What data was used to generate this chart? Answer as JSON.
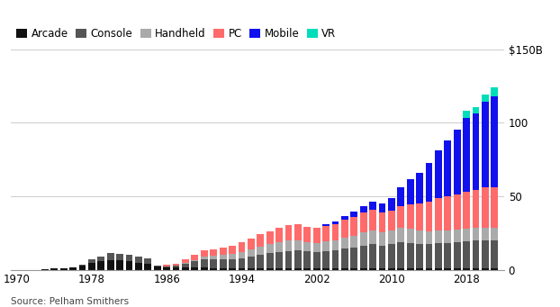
{
  "years": [
    1970,
    1971,
    1972,
    1973,
    1974,
    1975,
    1976,
    1977,
    1978,
    1979,
    1980,
    1981,
    1982,
    1983,
    1984,
    1985,
    1986,
    1987,
    1988,
    1989,
    1990,
    1991,
    1992,
    1993,
    1994,
    1995,
    1996,
    1997,
    1998,
    1999,
    2000,
    2001,
    2002,
    2003,
    2004,
    2005,
    2006,
    2007,
    2008,
    2009,
    2010,
    2011,
    2012,
    2013,
    2014,
    2015,
    2016,
    2017,
    2018,
    2019,
    2020,
    2021
  ],
  "arcade": [
    0.1,
    0.2,
    0.3,
    0.5,
    1.0,
    1.5,
    2.0,
    3.0,
    5.0,
    6.0,
    7.0,
    6.5,
    6.0,
    5.0,
    4.5,
    2.5,
    2.0,
    2.0,
    2.0,
    2.0,
    2.0,
    1.5,
    1.5,
    1.5,
    1.5,
    1.5,
    1.5,
    1.5,
    1.5,
    1.5,
    1.5,
    1.5,
    1.5,
    1.5,
    1.5,
    1.5,
    1.5,
    1.5,
    1.5,
    1.5,
    1.5,
    1.5,
    1.5,
    1.5,
    1.5,
    1.5,
    1.5,
    1.5,
    1.5,
    1.5,
    1.5,
    1.5
  ],
  "console": [
    0,
    0,
    0,
    0,
    0,
    0,
    0,
    1.0,
    2.5,
    3.5,
    4.5,
    4.5,
    4.5,
    4.0,
    3.5,
    0.5,
    0.5,
    1.0,
    2.5,
    4.0,
    5.5,
    6.0,
    6.0,
    6.0,
    6.5,
    7.5,
    9.0,
    10.0,
    11.0,
    11.5,
    12.0,
    11.5,
    11.0,
    11.5,
    12.0,
    13.0,
    14.0,
    15.0,
    16.0,
    15.0,
    16.0,
    17.5,
    17.0,
    16.5,
    16.5,
    17.0,
    17.0,
    17.5,
    18.0,
    18.5,
    19.0,
    19.0
  ],
  "handheld": [
    0,
    0,
    0,
    0,
    0,
    0,
    0,
    0,
    0,
    0,
    0,
    0,
    0,
    0,
    0,
    0,
    0,
    0,
    0.5,
    1.0,
    2.0,
    2.5,
    3.0,
    3.5,
    4.0,
    5.0,
    5.5,
    6.0,
    6.5,
    7.0,
    6.5,
    6.0,
    6.0,
    6.5,
    7.0,
    7.5,
    8.0,
    9.0,
    9.5,
    9.0,
    9.5,
    9.5,
    9.5,
    9.0,
    8.5,
    8.5,
    8.5,
    8.5,
    8.5,
    8.5,
    8.5,
    8.5
  ],
  "pc": [
    0,
    0,
    0,
    0,
    0,
    0,
    0,
    0,
    0,
    0,
    0,
    0,
    0,
    0,
    0,
    0,
    1.0,
    1.5,
    2.5,
    3.5,
    4.0,
    4.0,
    5.0,
    5.5,
    7.0,
    7.5,
    8.5,
    9.0,
    10.0,
    10.5,
    11.0,
    10.5,
    10.0,
    10.5,
    11.0,
    12.0,
    12.5,
    13.5,
    14.0,
    13.5,
    13.5,
    15.0,
    16.5,
    18.0,
    20.0,
    22.0,
    23.0,
    24.0,
    25.0,
    26.0,
    27.0,
    27.0
  ],
  "mobile": [
    0,
    0,
    0,
    0,
    0,
    0,
    0,
    0,
    0,
    0,
    0,
    0,
    0,
    0,
    0,
    0,
    0,
    0,
    0,
    0,
    0,
    0,
    0,
    0,
    0,
    0,
    0,
    0,
    0,
    0,
    0,
    0,
    0.5,
    1.0,
    1.5,
    2.5,
    3.5,
    4.5,
    5.5,
    6.0,
    8.5,
    13.0,
    17.0,
    21.0,
    26.0,
    32.0,
    38.0,
    44.0,
    50.0,
    52.0,
    58.0,
    62.0
  ],
  "vr": [
    0,
    0,
    0,
    0,
    0,
    0,
    0,
    0,
    0,
    0,
    0,
    0,
    0,
    0,
    0,
    0,
    0,
    0,
    0,
    0,
    0,
    0,
    0,
    0,
    0,
    0,
    0,
    0,
    0,
    0,
    0,
    0,
    0,
    0,
    0,
    0,
    0,
    0,
    0,
    0,
    0,
    0,
    0,
    0,
    0,
    0,
    0,
    0,
    5.0,
    4.0,
    5.0,
    6.0
  ],
  "colors": {
    "arcade": "#111111",
    "console": "#555555",
    "handheld": "#aaaaaa",
    "pc": "#ff6b6b",
    "mobile": "#1111ee",
    "vr": "#00ddbb"
  },
  "yticks": [
    0,
    50,
    100,
    150
  ],
  "ytick_labels": [
    "0",
    "50",
    "100",
    "$150B"
  ],
  "xticks": [
    1970,
    1978,
    1986,
    1994,
    2002,
    2010,
    2018
  ],
  "source": "Source: Pelham Smithers",
  "background_color": "#ffffff",
  "grid_color": "#cccccc"
}
